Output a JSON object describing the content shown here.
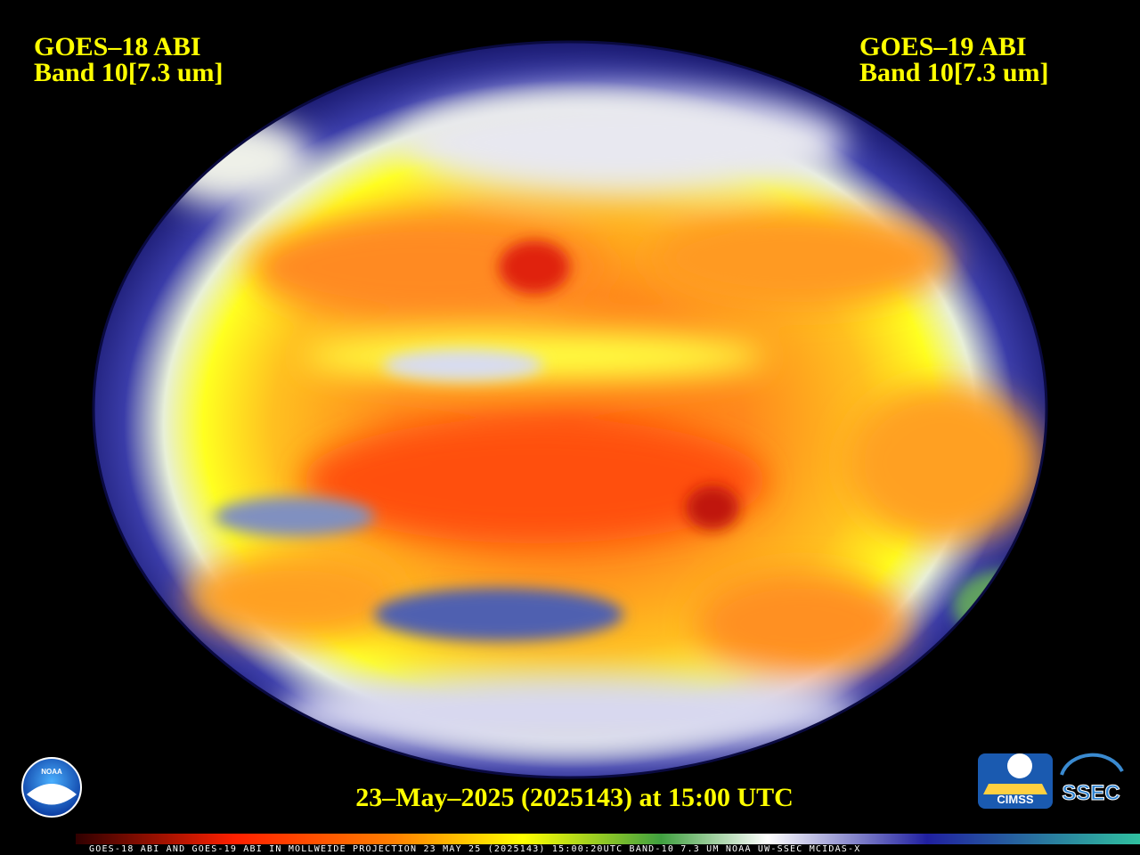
{
  "header": {
    "left": {
      "satellite": "GOES–18 ABI",
      "band": "Band 10[7.3 um]"
    },
    "right": {
      "satellite": "GOES–19 ABI",
      "band": "Band 10[7.3 um]"
    }
  },
  "timestamp": "23–May–2025 (2025143) at 15:00 UTC",
  "footer": "GOES-18 ABI AND GOES-19 ABI IN MOLLWEIDE PROJECTION 23 MAY 25 (2025143) 15:00:20UTC BAND-10 7.3 UM NOAA UW-SSEC MCIDAS-X",
  "logos": {
    "noaa": "NOAA",
    "cimss": "CIMSS",
    "ssec": "SSEC"
  }
}
